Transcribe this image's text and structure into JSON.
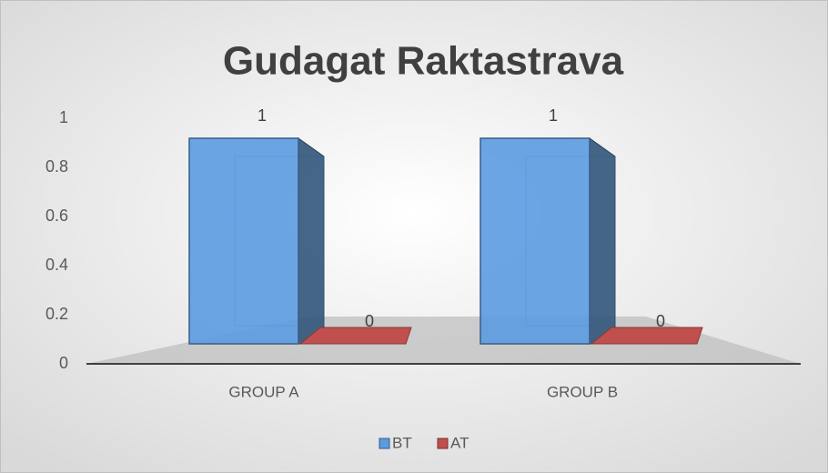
{
  "chart_data": {
    "type": "bar3d",
    "title": "Gudagat Raktastrava",
    "categories": [
      "GROUP A",
      "GROUP B"
    ],
    "series": [
      {
        "name": "BT",
        "color": "#5b9be0",
        "values": [
          1,
          1
        ]
      },
      {
        "name": "AT",
        "color": "#c0504d",
        "values": [
          0,
          0
        ]
      }
    ],
    "ylim": [
      0,
      1
    ],
    "yticks": [
      0,
      0.2,
      0.4,
      0.6,
      0.8,
      1
    ]
  }
}
